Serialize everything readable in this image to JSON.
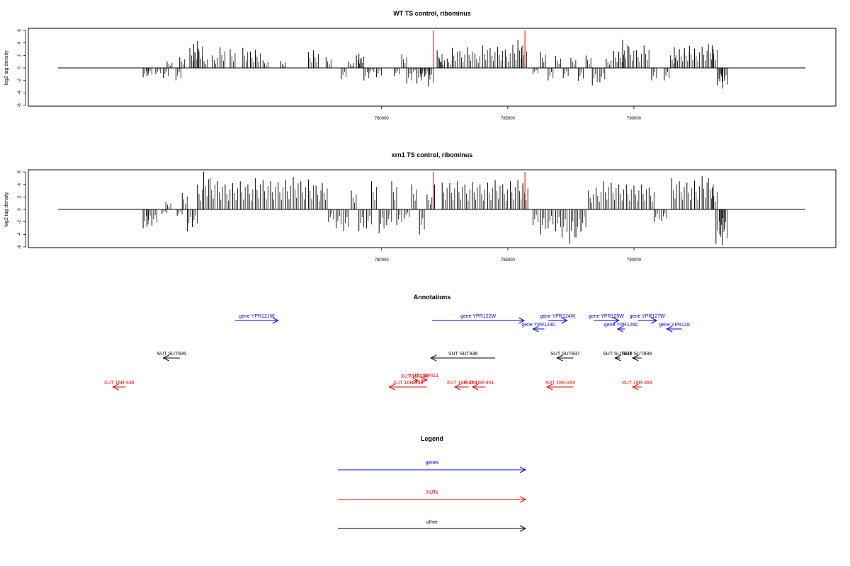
{
  "chart_data": [
    {
      "type": "bar",
      "title": "WT TS control, ribominus",
      "ylabel": "log2 tag density",
      "xlabel": "",
      "ylim": [
        -6,
        6
      ],
      "yticks": [
        "-6",
        "-4",
        "-2",
        "0",
        "2",
        "4",
        "6"
      ],
      "xticks": [
        "780000",
        "785000",
        "790000"
      ],
      "grid": false,
      "bar_color": "#000000",
      "highlight_color": "#ff0000",
      "highlight_lines": [
        {
          "x": 782050,
          "height": 6.0
        },
        {
          "x": 785680,
          "height": 6.0
        }
      ],
      "series": [
        {
          "values": [
            [
              770550,
              -1.5
            ],
            [
              770700,
              -1.3
            ],
            [
              771050,
              -1.0
            ],
            [
              771350,
              -1.6
            ],
            [
              771500,
              1.0
            ],
            [
              771850,
              -2.0
            ],
            [
              772000,
              1.7
            ],
            [
              772400,
              3.2
            ],
            [
              772550,
              3.8
            ],
            [
              772700,
              4.3
            ],
            [
              772900,
              1.7
            ],
            [
              773300,
              2.0
            ],
            [
              773600,
              3.3
            ],
            [
              774000,
              3.0
            ],
            [
              774500,
              3.2
            ],
            [
              774800,
              2.6
            ],
            [
              775000,
              2.9
            ],
            [
              775300,
              1.2
            ],
            [
              776000,
              1.1
            ],
            [
              777100,
              2.5
            ],
            [
              777300,
              2.8
            ],
            [
              777800,
              1.7
            ],
            [
              778400,
              -1.8
            ],
            [
              778700,
              1.0
            ],
            [
              779000,
              2.0
            ],
            [
              779100,
              2.3
            ],
            [
              779300,
              -2.0
            ],
            [
              779500,
              -0.8
            ],
            [
              779800,
              -1.5
            ],
            [
              780500,
              -1.3
            ],
            [
              780800,
              2.2
            ],
            [
              781000,
              -2.5
            ],
            [
              781200,
              -1.0
            ],
            [
              781400,
              -2.5
            ],
            [
              781550,
              -1.4
            ],
            [
              781700,
              -1.4
            ],
            [
              781850,
              -3.0
            ],
            [
              782200,
              2.8
            ],
            [
              782300,
              1.5
            ],
            [
              782600,
              1.5
            ],
            [
              782800,
              3.2
            ],
            [
              783100,
              2.7
            ],
            [
              783400,
              3.3
            ],
            [
              783700,
              2.3
            ],
            [
              784000,
              3.6
            ],
            [
              784300,
              3.2
            ],
            [
              784600,
              3.4
            ],
            [
              784900,
              2.9
            ],
            [
              785200,
              3.7
            ],
            [
              785400,
              4.5
            ],
            [
              785550,
              3.3
            ],
            [
              786000,
              -1.0
            ],
            [
              786300,
              2.6
            ],
            [
              786600,
              -2.0
            ],
            [
              786900,
              1.9
            ],
            [
              787200,
              -1.6
            ],
            [
              787500,
              1.6
            ],
            [
              787800,
              -2.1
            ],
            [
              788100,
              2.0
            ],
            [
              788350,
              -2.8
            ],
            [
              788650,
              -2.3
            ],
            [
              788900,
              1.5
            ],
            [
              789200,
              2.7
            ],
            [
              789400,
              2.6
            ],
            [
              789550,
              4.5
            ],
            [
              789800,
              3.4
            ],
            [
              790100,
              2.8
            ],
            [
              790400,
              3.6
            ],
            [
              790700,
              -2.0
            ],
            [
              791200,
              -2.0
            ],
            [
              791450,
              2.0
            ],
            [
              791600,
              3.3
            ],
            [
              791800,
              3.0
            ],
            [
              792000,
              3.2
            ],
            [
              792200,
              3.5
            ],
            [
              792400,
              3.1
            ],
            [
              792700,
              3.4
            ],
            [
              792950,
              3.8
            ],
            [
              793100,
              3.6
            ],
            [
              793300,
              -2.8
            ],
            [
              793400,
              -2.2
            ],
            [
              793520,
              -3.3
            ]
          ]
        }
      ]
    },
    {
      "type": "bar",
      "title": "xrn1 TS control, ribominus",
      "ylabel": "log2 tag density",
      "xlabel": "",
      "ylim": [
        -6,
        6
      ],
      "yticks": [
        "-6",
        "-4",
        "-2",
        "0",
        "2",
        "4",
        "6"
      ],
      "xticks": [
        "780000",
        "785000",
        "790000"
      ],
      "grid": false,
      "bar_color": "#000000",
      "highlight_color": "#ff0000",
      "highlight_lines": [
        {
          "x": 782050,
          "height": 6.0
        },
        {
          "x": 785680,
          "height": 6.0
        }
      ],
      "series": [
        {
          "values": [
            [
              770550,
              -3.0
            ],
            [
              770700,
              -2.8
            ],
            [
              770900,
              -2.6
            ],
            [
              771300,
              -0.7
            ],
            [
              771450,
              1.2
            ],
            [
              771900,
              -1.0
            ],
            [
              772100,
              2.6
            ],
            [
              772300,
              -3.5
            ],
            [
              772500,
              -2.8
            ],
            [
              772700,
              4.0
            ],
            [
              772950,
              6.0
            ],
            [
              773200,
              5.0
            ],
            [
              773500,
              4.5
            ],
            [
              773800,
              4.0
            ],
            [
              774100,
              4.2
            ],
            [
              774400,
              4.5
            ],
            [
              774700,
              4.0
            ],
            [
              775000,
              5.0
            ],
            [
              775300,
              4.7
            ],
            [
              775600,
              4.5
            ],
            [
              775900,
              4.4
            ],
            [
              776200,
              4.7
            ],
            [
              776500,
              5.2
            ],
            [
              776800,
              4.5
            ],
            [
              777100,
              4.8
            ],
            [
              777400,
              3.8
            ],
            [
              777650,
              4.2
            ],
            [
              777900,
              -2.0
            ],
            [
              778200,
              -3.0
            ],
            [
              778500,
              -3.5
            ],
            [
              778800,
              3.0
            ],
            [
              779100,
              -3.5
            ],
            [
              779400,
              -3.0
            ],
            [
              779600,
              4.5
            ],
            [
              779900,
              -3.8
            ],
            [
              780200,
              -2.5
            ],
            [
              780400,
              4.5
            ],
            [
              780600,
              -2.5
            ],
            [
              780900,
              -1.5
            ],
            [
              781200,
              4.0
            ],
            [
              781500,
              -4.0
            ],
            [
              781800,
              2.4
            ],
            [
              782100,
              4.0
            ],
            [
              782400,
              4.3
            ],
            [
              782700,
              4.2
            ],
            [
              783000,
              4.5
            ],
            [
              783300,
              4.0
            ],
            [
              783600,
              4.4
            ],
            [
              783900,
              4.0
            ],
            [
              784200,
              4.3
            ],
            [
              784500,
              4.7
            ],
            [
              784800,
              4.0
            ],
            [
              785100,
              4.5
            ],
            [
              785400,
              4.7
            ],
            [
              785600,
              4.2
            ],
            [
              786000,
              -2.5
            ],
            [
              786300,
              -4.0
            ],
            [
              786600,
              -3.0
            ],
            [
              786900,
              -3.5
            ],
            [
              787150,
              -4.5
            ],
            [
              787450,
              -5.5
            ],
            [
              787700,
              -4.5
            ],
            [
              787900,
              -3.5
            ],
            [
              788200,
              3.0
            ],
            [
              788500,
              3.5
            ],
            [
              788800,
              4.5
            ],
            [
              789100,
              4.3
            ],
            [
              789400,
              4.0
            ],
            [
              789700,
              4.0
            ],
            [
              790000,
              3.8
            ],
            [
              790300,
              4.0
            ],
            [
              790600,
              3.5
            ],
            [
              790800,
              -2.0
            ],
            [
              791100,
              -1.8
            ],
            [
              791500,
              5.0
            ],
            [
              791800,
              4.5
            ],
            [
              792100,
              4.3
            ],
            [
              792400,
              4.6
            ],
            [
              792700,
              5.3
            ],
            [
              792950,
              5.0
            ],
            [
              793100,
              3.5
            ],
            [
              793250,
              -5.5
            ],
            [
              793400,
              -4.0
            ],
            [
              793500,
              -5.8
            ]
          ]
        }
      ]
    }
  ],
  "annotations": {
    "title": "Annotations",
    "genes_color": "#0000ff",
    "xuts_color": "#ff0000",
    "other_color": "#000000",
    "genes": [
      {
        "label": "gene YPR121W",
        "from": 774200,
        "to": 775900,
        "dir": "+"
      },
      {
        "label": "gene YPR122W",
        "from": 782000,
        "to": 785650,
        "dir": "+"
      },
      {
        "label": "gene YPR124W",
        "from": 786600,
        "to": 787350,
        "dir": "+"
      },
      {
        "label": "gene YPR123C",
        "from": 786450,
        "to": 786000,
        "dir": "-"
      },
      {
        "label": "gene YPR125W",
        "from": 788400,
        "to": 789400,
        "dir": "+"
      },
      {
        "label": "gene YPR126C",
        "from": 789650,
        "to": 789350,
        "dir": "-"
      },
      {
        "label": "gene YPR127W",
        "from": 790150,
        "to": 790900,
        "dir": "+"
      },
      {
        "label": "gene YPR128",
        "from": 791900,
        "to": 791300,
        "dir": "-"
      }
    ],
    "suts": [
      {
        "label": "SUT SUT835",
        "from": 772000,
        "to": 771350,
        "dir": "-"
      },
      {
        "label": "SUT SUT836",
        "from": 784500,
        "to": 781950,
        "dir": "-"
      },
      {
        "label": "SUT SUT837",
        "from": 787600,
        "to": 786950,
        "dir": "-"
      },
      {
        "label": "SUT SUT838",
        "from": 789450,
        "to": 789250,
        "dir": "-"
      },
      {
        "label": "SUT SUT839",
        "from": 790300,
        "to": 789950,
        "dir": "-"
      }
    ],
    "xuts": [
      {
        "label": "XUT 16R-346",
        "from": 769850,
        "to": 769350,
        "dir": "-"
      },
      {
        "label": "XUT 16R-348",
        "from": 781800,
        "to": 780300,
        "dir": "-"
      },
      {
        "label": "XUT 16R-347",
        "from": 781250,
        "to": 781450,
        "dir": "+"
      },
      {
        "label": "XUT 16F-311",
        "from": 781550,
        "to": 781800,
        "dir": "+"
      },
      {
        "label": "XUT 16R-349",
        "from": 783450,
        "to": 782900,
        "dir": "-"
      },
      {
        "label": "XUT 16R-351",
        "from": 784100,
        "to": 783600,
        "dir": "-"
      },
      {
        "label": "XUT 16R-354",
        "from": 787600,
        "to": 786550,
        "dir": "-"
      },
      {
        "label": "XUT 16R-359",
        "from": 790300,
        "to": 789950,
        "dir": "-"
      }
    ]
  },
  "legend": {
    "title": "Legend",
    "items": [
      {
        "label": "genes",
        "color": "#0000ff"
      },
      {
        "label": "XUTs",
        "color": "#ff0000"
      },
      {
        "label": "other",
        "color": "#000000"
      }
    ]
  }
}
